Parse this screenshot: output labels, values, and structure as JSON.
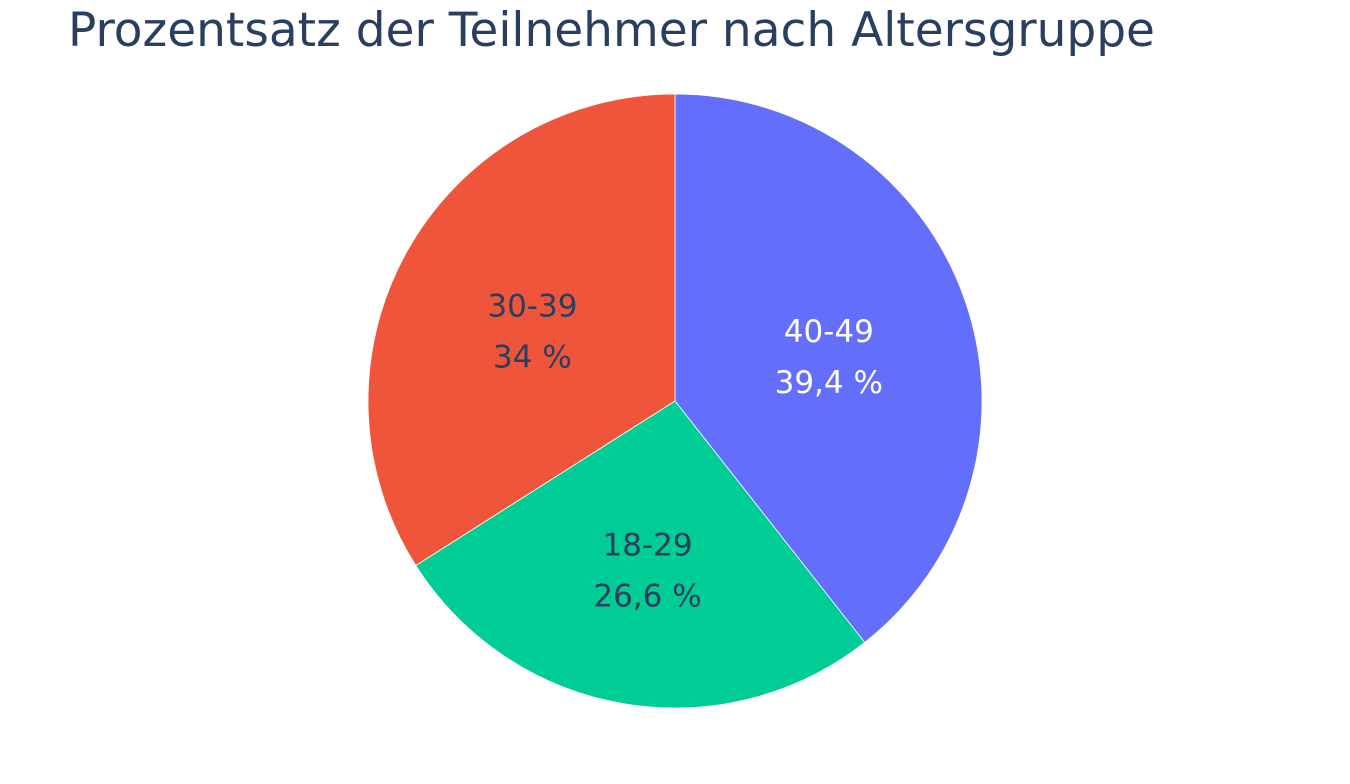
{
  "chart_data": {
    "type": "pie",
    "title": "Prozentsatz der Teilnehmer nach Altersgruppe",
    "slices": [
      {
        "label": "40-49",
        "value": 39.4,
        "percent_text": "39,4 %",
        "color": "#636efa",
        "text_color": "#ffffff"
      },
      {
        "label": "18-29",
        "value": 26.6,
        "percent_text": "26,6 %",
        "color": "#00cc96",
        "text_color": "#2a3f5f"
      },
      {
        "label": "30-39",
        "value": 34.0,
        "percent_text": "34 %",
        "color": "#ef553b",
        "text_color": "#2a3f5f"
      }
    ],
    "direction": "clockwise",
    "start": "top",
    "slice_border_color": "#ffffff",
    "legend": "none"
  }
}
